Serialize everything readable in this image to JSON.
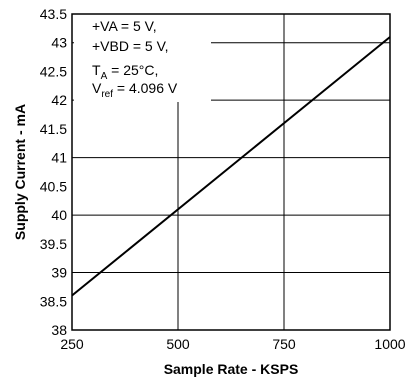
{
  "chart_data": {
    "type": "line",
    "xlabel": "Sample Rate - KSPS",
    "ylabel": "Supply Current - mA",
    "xlim": [
      250,
      1000
    ],
    "ylim": [
      38,
      43.5
    ],
    "x_ticks": [
      "250",
      "500",
      "750",
      "1000"
    ],
    "y_ticks": [
      "38",
      "38.5",
      "39",
      "39.5",
      "40",
      "40.5",
      "41",
      "41.5",
      "42",
      "42.5",
      "43",
      "43.5"
    ],
    "grid": true,
    "series": [
      {
        "x": [
          250,
          1000
        ],
        "y": [
          38.6,
          43.1
        ]
      }
    ],
    "annotation": {
      "line1": "+VA = 5 V,",
      "line2": "+VBD = 5 V,",
      "line3_main": "T",
      "line3_sub": "A",
      "line3_rest": " = 25°C,",
      "line4_main": "V",
      "line4_sub": "ref",
      "line4_rest": " = 4.096 V"
    }
  }
}
